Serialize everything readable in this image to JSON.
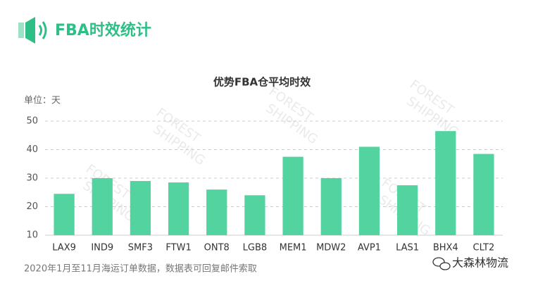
{
  "header": {
    "title": "FBA时效统计"
  },
  "chart_data": {
    "type": "bar",
    "title": "优势FBA仓平均时效",
    "y_unit_label": "单位：天",
    "categories": [
      "LAX9",
      "IND9",
      "SMF3",
      "FTW1",
      "ONT8",
      "LGB8",
      "MEM1",
      "MDW2",
      "AVP1",
      "LAS1",
      "BHX4",
      "CLT2"
    ],
    "values": [
      24.5,
      30,
      29,
      28.5,
      26,
      24,
      37.5,
      30,
      41,
      27.5,
      46.5,
      38.5
    ],
    "color": "#52d3a0",
    "ylim": [
      10,
      50
    ],
    "yticks": [
      10,
      20,
      30,
      40,
      50
    ],
    "grid": true
  },
  "watermark": [
    "FOREST",
    "SHIPPING"
  ],
  "footer": {
    "note": "2020年1月至11月海运订单数据，数据表可回复邮件索取",
    "brand": "大森林物流"
  }
}
